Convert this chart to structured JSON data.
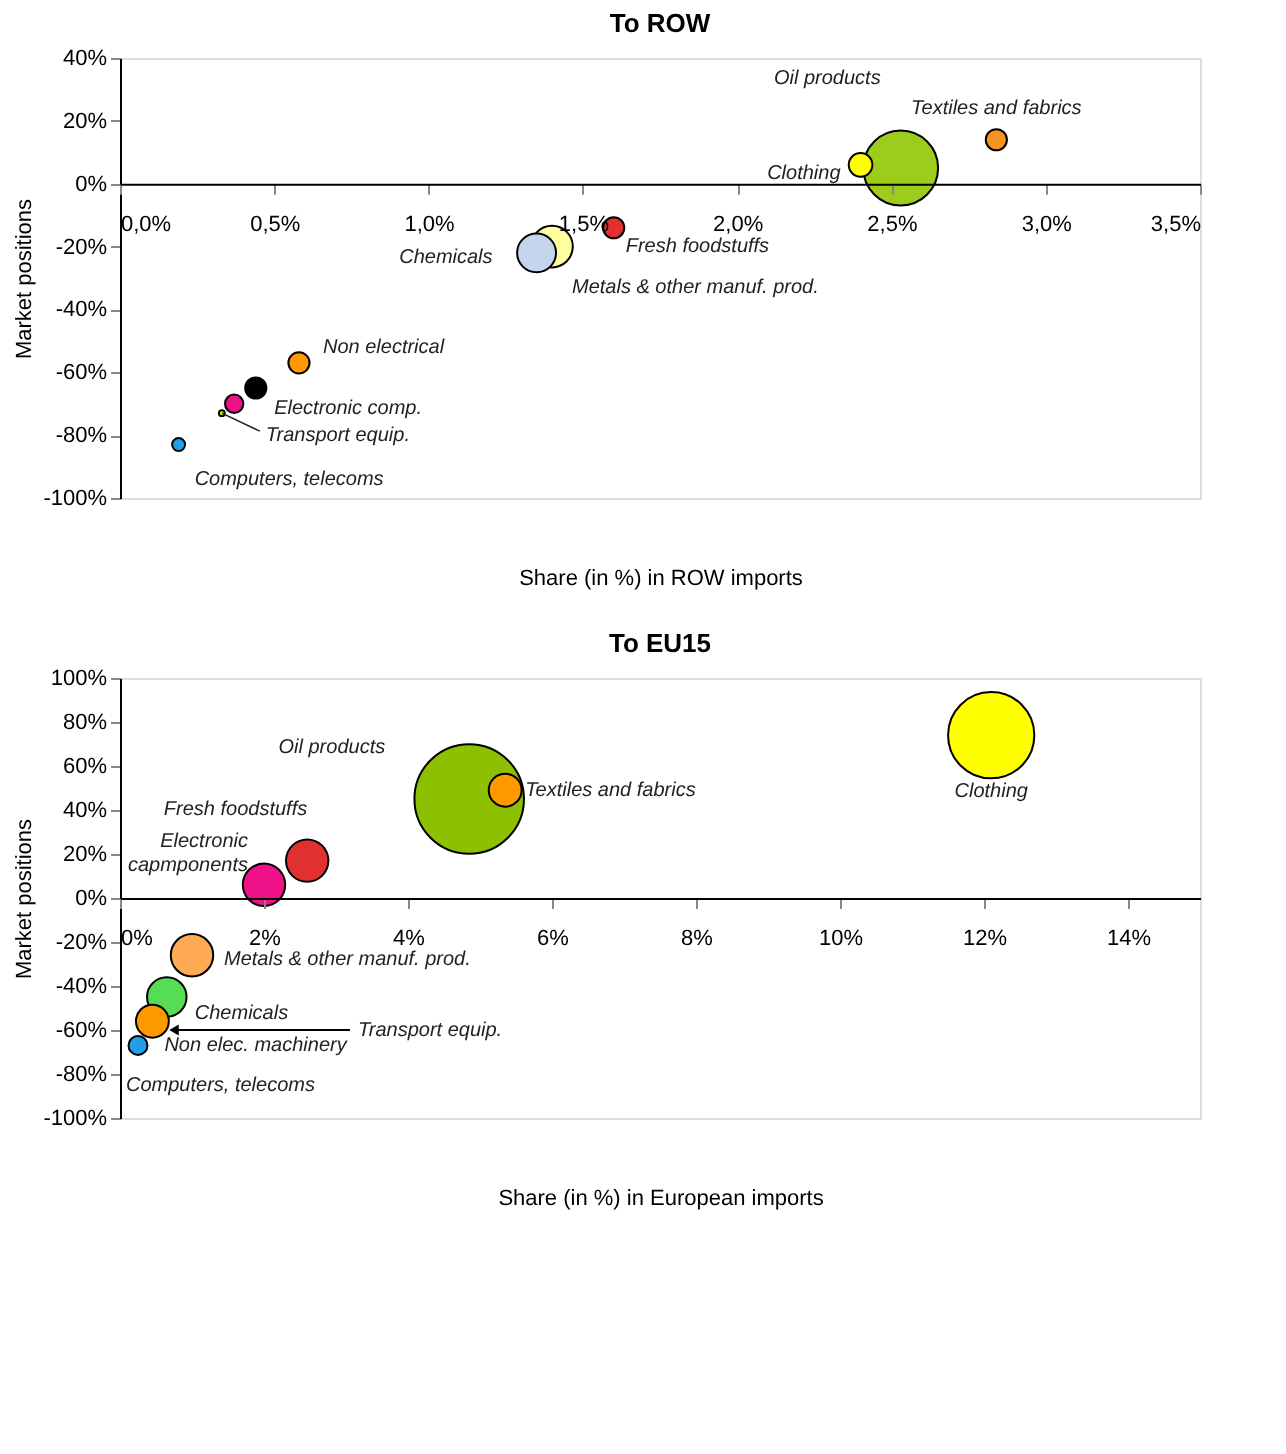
{
  "chart_data": [
    {
      "type": "bubble",
      "title": "To ROW",
      "xlabel": "Share (in %) in ROW imports",
      "ylabel": "Market positions",
      "marker": "circle",
      "grid": false,
      "legend": false,
      "xlim": [
        0,
        3.5
      ],
      "xticks": [
        {
          "value": 0,
          "label": "0,0%"
        },
        {
          "value": 0.5,
          "label": "0,5%"
        },
        {
          "value": 1,
          "label": "1,0%"
        },
        {
          "value": 1.5,
          "label": "1,5%"
        },
        {
          "value": 2,
          "label": "2,0%"
        },
        {
          "value": 2.5,
          "label": "2,5%"
        },
        {
          "value": 3,
          "label": "3,0%"
        },
        {
          "value": 3.5,
          "label": "3,5%"
        }
      ],
      "ylim": [
        -100,
        40
      ],
      "yticks": [
        {
          "value": -100,
          "label": "-100%"
        },
        {
          "value": -80,
          "label": "-80%"
        },
        {
          "value": -60,
          "label": "-60%"
        },
        {
          "value": -40,
          "label": "-40%"
        },
        {
          "value": -20,
          "label": "-20%"
        },
        {
          "value": 0,
          "label": "0%"
        },
        {
          "value": 20,
          "label": "20%"
        },
        {
          "value": 40,
          "label": "40%"
        }
      ],
      "series": [
        {
          "name": "Oil products",
          "color": "#9ccc1c",
          "x": [
            2.53
          ],
          "values": [
            5
          ],
          "sizes": [
            1
          ]
        },
        {
          "name": "Textiles and fabrics",
          "color": "#f7941d",
          "x": [
            2.84
          ],
          "values": [
            14
          ],
          "sizes": [
            0.08
          ]
        },
        {
          "name": "Clothing",
          "color": "#ffff00",
          "x": [
            2.4
          ],
          "values": [
            6
          ],
          "sizes": [
            0.1
          ]
        },
        {
          "name": "Fresh foodstuffs",
          "color": "#e03030",
          "x": [
            1.6
          ],
          "values": [
            -14
          ],
          "sizes": [
            0.08
          ]
        },
        {
          "name": "Chemicals",
          "color": "#c5d5ee",
          "x": [
            1.35
          ],
          "values": [
            -22
          ],
          "sizes": [
            0.27
          ]
        },
        {
          "name": "Metals & other manuf. prod.",
          "color": "#ffffa0",
          "x": [
            1.4
          ],
          "values": [
            -20
          ],
          "sizes": [
            0.31
          ]
        },
        {
          "name": "Non electrical",
          "color": "#ff9900",
          "x": [
            0.58
          ],
          "values": [
            -57
          ],
          "sizes": [
            0.08
          ]
        },
        {
          "color": "#000000",
          "x": [
            0.44
          ],
          "values": [
            -65
          ],
          "sizes": [
            0.08
          ]
        },
        {
          "name": "Electronic comp.",
          "color": "#ee1188",
          "x": [
            0.37
          ],
          "values": [
            -70
          ],
          "sizes": [
            0.06
          ]
        },
        {
          "name": "Transport equip.",
          "color": "#ffff00",
          "x": [
            0.33
          ],
          "values": [
            -73
          ],
          "sizes": [
            0.006
          ]
        },
        {
          "name": "Computers, telecoms",
          "color": "#1e9fe8",
          "x": [
            0.19
          ],
          "values": [
            -83
          ],
          "sizes": [
            0.03
          ]
        }
      ]
    },
    {
      "type": "bubble",
      "title": "To EU15",
      "xlabel": "Share (in %) in European imports",
      "ylabel": "Market positions",
      "marker": "circle",
      "grid": false,
      "legend": false,
      "xlim": [
        0,
        15
      ],
      "xticks": [
        {
          "value": 0,
          "label": "0%"
        },
        {
          "value": 2,
          "label": "2%"
        },
        {
          "value": 4,
          "label": "4%"
        },
        {
          "value": 6,
          "label": "6%"
        },
        {
          "value": 8,
          "label": "8%"
        },
        {
          "value": 10,
          "label": "10%"
        },
        {
          "value": 12,
          "label": "12%"
        },
        {
          "value": 14,
          "label": "14%"
        }
      ],
      "ylim": [
        -100,
        100
      ],
      "yticks": [
        {
          "value": -100,
          "label": "-100%"
        },
        {
          "value": -80,
          "label": "-80%"
        },
        {
          "value": -60,
          "label": "-60%"
        },
        {
          "value": -40,
          "label": "-40%"
        },
        {
          "value": -20,
          "label": "-20%"
        },
        {
          "value": 0,
          "label": "0%"
        },
        {
          "value": 20,
          "label": "20%"
        },
        {
          "value": 40,
          "label": "40%"
        },
        {
          "value": 60,
          "label": "60%"
        },
        {
          "value": 80,
          "label": "80%"
        },
        {
          "value": 100,
          "label": "100%"
        }
      ],
      "annotations": [
        {
          "text": "Transport equip.",
          "x": 0.75,
          "y": -60
        }
      ],
      "series": [
        {
          "name": "Oil products",
          "color": "#8cc000",
          "x": [
            4.85
          ],
          "values": [
            45
          ],
          "sizes": [
            1
          ]
        },
        {
          "name": "Clothing",
          "color": "#ffff00",
          "x": [
            12.1
          ],
          "values": [
            74
          ],
          "sizes": [
            0.62
          ]
        },
        {
          "name": "Textiles and fabrics",
          "color": "#ff9900",
          "x": [
            5.35
          ],
          "values": [
            49
          ],
          "sizes": [
            0.09
          ]
        },
        {
          "name": "Fresh foodstuffs",
          "color": "#e03030",
          "x": [
            2.6
          ],
          "values": [
            17
          ],
          "sizes": [
            0.15
          ]
        },
        {
          "name": "Electronic capmponents",
          "color": "#ee1188",
          "x": [
            2.0
          ],
          "values": [
            6
          ],
          "sizes": [
            0.15
          ]
        },
        {
          "name": "Metals & other manuf. prod.",
          "color": "#ffaa55",
          "x": [
            1.0
          ],
          "values": [
            -26
          ],
          "sizes": [
            0.15
          ]
        },
        {
          "name": "Chemicals",
          "color": "#55dd55",
          "x": [
            0.65
          ],
          "values": [
            -45
          ],
          "sizes": [
            0.13
          ]
        },
        {
          "name": "Non elec. machinery",
          "color": "#ff9900",
          "x": [
            0.45
          ],
          "values": [
            -56
          ],
          "sizes": [
            0.09
          ]
        },
        {
          "name": "Computers, telecoms",
          "color": "#1e9fe8",
          "x": [
            0.25
          ],
          "values": [
            -67
          ],
          "sizes": [
            0.03
          ]
        }
      ]
    }
  ]
}
